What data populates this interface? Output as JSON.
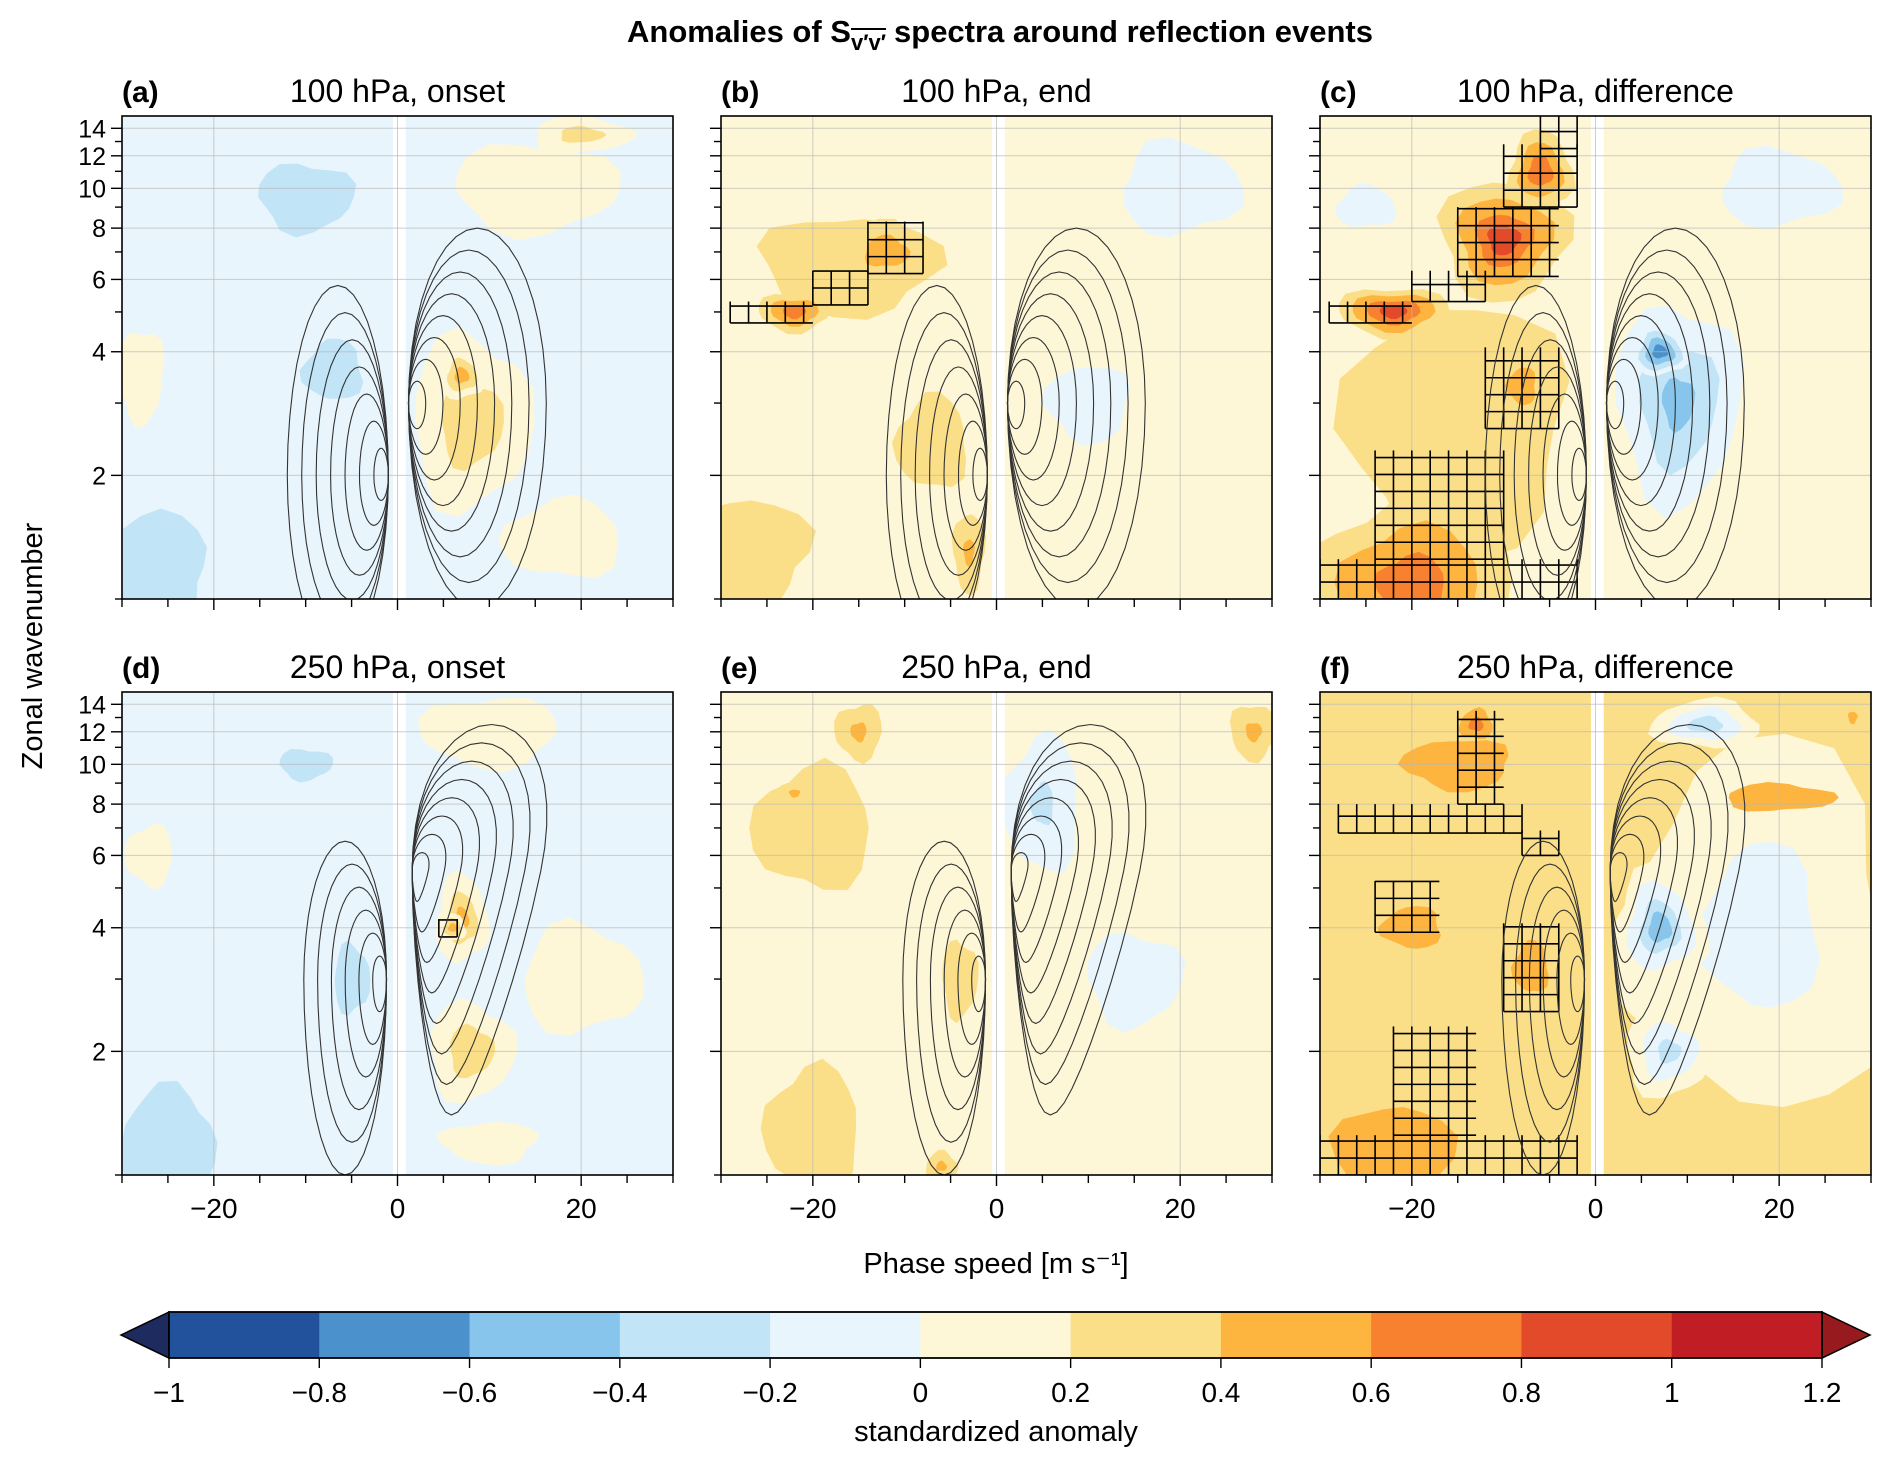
{
  "figure": {
    "title_prefix": "Anomalies of S",
    "title_subscript": "v′v′",
    "title_suffix": "spectra around reflection events",
    "xlabel": "Phase speed [m s⁻¹]",
    "ylabel": "Zonal wavenumber"
  },
  "colorbar": {
    "label": "standardized anomaly",
    "ticks": [
      "−1",
      "−0.8",
      "−0.6",
      "−0.4",
      "−0.2",
      "0",
      "0.2",
      "0.4",
      "0.6",
      "0.8",
      "1",
      "1.2"
    ],
    "bounds": [
      -1,
      -0.8,
      -0.6,
      -0.4,
      -0.2,
      0,
      0.2,
      0.4,
      0.6,
      0.8,
      1,
      1.2
    ],
    "colors": [
      "#23529c",
      "#4b91cb",
      "#87c5ec",
      "#c1e4f7",
      "#e9f5fc",
      "#fef7d7",
      "#fbdf88",
      "#fdb53f",
      "#f7812e",
      "#e34a2a",
      "#c01e24"
    ],
    "under_color": "#1d2b5e",
    "over_color": "#961a1e",
    "extend": "both"
  },
  "chart_data": {
    "type": "contourf",
    "xlim": [
      -30,
      30
    ],
    "ylim": [
      1,
      15
    ],
    "yscale": "log",
    "x_ticks": [
      -20,
      0,
      20
    ],
    "x_tick_labels": [
      "−20",
      "0",
      "20"
    ],
    "y_ticks": [
      2,
      4,
      6,
      8,
      10,
      12,
      14
    ],
    "y_tick_labels": [
      "2",
      "4",
      "6",
      "8",
      "10",
      "12",
      "14"
    ],
    "grid": true,
    "hatching": "significant anomalies",
    "line_contours": "climatological spectrum (unlabelled black contours)",
    "panels": [
      {
        "label": "(a)",
        "title": "100 hPa, onset",
        "background": -0.1,
        "anomalies": [
          {
            "c": -10,
            "k": 9.5,
            "sc": 8,
            "sk": 1.35,
            "v": -0.3
          },
          {
            "c": -27,
            "k": 1.2,
            "sc": 10,
            "sk": 1.6,
            "v": -0.3
          },
          {
            "c": -7,
            "k": 3.6,
            "sc": 5,
            "sk": 1.3,
            "v": -0.3
          },
          {
            "c": 15,
            "k": 10,
            "sc": 12,
            "sk": 1.4,
            "v": 0.15
          },
          {
            "c": -28,
            "k": 3.5,
            "sc": 4,
            "sk": 1.5,
            "v": 0.1
          },
          {
            "c": 18,
            "k": 1.4,
            "sc": 10,
            "sk": 1.4,
            "v": 0.1
          },
          {
            "c": 8,
            "k": 2.7,
            "sc": 7,
            "sk": 1.7,
            "v": 0.35
          },
          {
            "c": 7,
            "k": 3.5,
            "sc": 2.5,
            "sk": 1.15,
            "v": 0.5
          },
          {
            "c": 20,
            "k": 13.5,
            "sc": 6,
            "sk": 1.12,
            "v": 0.3
          }
        ],
        "hatch": [],
        "lobes": "upper"
      },
      {
        "label": "(b)",
        "title": "100 hPa, end",
        "background": 0.1,
        "anomalies": [
          {
            "c": -16,
            "k": 6.5,
            "sc": 13,
            "sk": 1.45,
            "v": 0.35
          },
          {
            "c": -28,
            "k": 1.3,
            "sc": 12,
            "sk": 1.6,
            "v": 0.3
          },
          {
            "c": -7,
            "k": 2.4,
            "sc": 6,
            "sk": 1.5,
            "v": 0.3
          },
          {
            "c": 10,
            "k": 3,
            "sc": 7,
            "sk": 1.4,
            "v": -0.1
          },
          {
            "c": 20,
            "k": 10,
            "sc": 10,
            "sk": 1.5,
            "v": -0.1
          },
          {
            "c": -22,
            "k": 5,
            "sc": 4,
            "sk": 1.12,
            "v": 0.7
          },
          {
            "c": -12,
            "k": 7,
            "sc": 5,
            "sk": 1.2,
            "v": 0.55
          },
          {
            "c": -3,
            "k": 1.3,
            "sc": 2,
            "sk": 1.3,
            "v": 0.45
          }
        ],
        "hatch": [
          [
            -29,
            -20,
            4.7,
            5.3
          ],
          [
            -20,
            -14,
            5.2,
            6.3
          ],
          [
            -14,
            -8,
            6.2,
            8.3
          ]
        ],
        "lobes": "upper"
      },
      {
        "label": "(c)",
        "title": "100 hPa, difference",
        "background": 0.1,
        "anomalies": [
          {
            "c": -15,
            "k": 2.6,
            "sc": 16,
            "sk": 2.6,
            "v": 0.35
          },
          {
            "c": -20,
            "k": 1.1,
            "sc": 12,
            "sk": 1.6,
            "v": 0.7
          },
          {
            "c": -22,
            "k": 5,
            "sc": 6,
            "sk": 1.15,
            "v": 0.85
          },
          {
            "c": -10,
            "k": 7.5,
            "sc": 7,
            "sk": 1.4,
            "v": 0.8
          },
          {
            "c": -6,
            "k": 11,
            "sc": 3.5,
            "sk": 1.25,
            "v": 0.75
          },
          {
            "c": -8,
            "k": 3.3,
            "sc": 4,
            "sk": 1.3,
            "v": 0.5
          },
          {
            "c": 9,
            "k": 3,
            "sc": 7,
            "sk": 1.8,
            "v": -0.45
          },
          {
            "c": 7,
            "k": 4,
            "sc": 3,
            "sk": 1.15,
            "v": -0.7
          },
          {
            "c": 20,
            "k": 10,
            "sc": 10,
            "sk": 1.4,
            "v": -0.1
          },
          {
            "c": -25,
            "k": 9,
            "sc": 5,
            "sk": 1.2,
            "v": -0.1
          }
        ],
        "hatch": [
          [
            -30,
            -2,
            1,
            1.25
          ],
          [
            -24,
            -10,
            1.25,
            2.3
          ],
          [
            -12,
            -4,
            2.6,
            4.1
          ],
          [
            -29,
            -20,
            4.7,
            5.3
          ],
          [
            -20,
            -12,
            5.3,
            6.3
          ],
          [
            -15,
            -4,
            6.1,
            9
          ],
          [
            -10,
            -2,
            9,
            12.8
          ],
          [
            -6,
            -2,
            12.5,
            15
          ]
        ],
        "lobes": "upper"
      },
      {
        "label": "(d)",
        "title": "250 hPa, onset",
        "background": -0.1,
        "anomalies": [
          {
            "c": -25,
            "k": 1.2,
            "sc": 8,
            "sk": 1.6,
            "v": -0.3
          },
          {
            "c": -5,
            "k": 3,
            "sc": 3,
            "sk": 1.35,
            "v": -0.3
          },
          {
            "c": -10,
            "k": 10,
            "sc": 6,
            "sk": 1.2,
            "v": -0.25
          },
          {
            "c": 20,
            "k": 3,
            "sc": 10,
            "sk": 1.6,
            "v": 0.1
          },
          {
            "c": 10,
            "k": 12,
            "sc": 10,
            "sk": 1.3,
            "v": 0.15
          },
          {
            "c": -27,
            "k": 6,
            "sc": 4,
            "sk": 1.3,
            "v": 0.1
          },
          {
            "c": 10,
            "k": 1.2,
            "sc": 8,
            "sk": 1.2,
            "v": 0.1
          },
          {
            "c": 8,
            "k": 2,
            "sc": 5,
            "sk": 1.35,
            "v": 0.35
          },
          {
            "c": 7,
            "k": 4.2,
            "sc": 3,
            "sk": 1.3,
            "v": 0.4
          },
          {
            "c": 6,
            "k": 4,
            "sc": 1.5,
            "sk": 1.08,
            "v": 0.5
          }
        ],
        "hatch": [
          [
            4.5,
            6.5,
            3.8,
            4.2
          ]
        ],
        "lobes": "lower"
      },
      {
        "label": "(e)",
        "title": "250 hPa, end",
        "background": 0.1,
        "anomalies": [
          {
            "c": -20,
            "k": 7,
            "sc": 10,
            "sk": 1.7,
            "v": 0.3
          },
          {
            "c": -20,
            "k": 1.3,
            "sc": 8,
            "sk": 1.7,
            "v": 0.3
          },
          {
            "c": -4,
            "k": 3,
            "sc": 3,
            "sk": 1.4,
            "v": 0.3
          },
          {
            "c": 5,
            "k": 8,
            "sc": 5,
            "sk": 1.6,
            "v": -0.2
          },
          {
            "c": 15,
            "k": 3,
            "sc": 8,
            "sk": 1.5,
            "v": -0.1
          },
          {
            "c": -15,
            "k": 12,
            "sc": 3,
            "sk": 1.2,
            "v": 0.45
          },
          {
            "c": -22,
            "k": 8.5,
            "sc": 2,
            "sk": 1.08,
            "v": 0.45
          },
          {
            "c": 28,
            "k": 12,
            "sc": 3,
            "sk": 1.2,
            "v": 0.45
          },
          {
            "c": -6,
            "k": 1.05,
            "sc": 2,
            "sk": 1.1,
            "v": 0.45
          }
        ],
        "hatch": [],
        "lobes": "lower"
      },
      {
        "label": "(f)",
        "title": "250 hPa, difference",
        "background": 0.3,
        "anomalies": [
          {
            "c": 18,
            "k": 4,
            "sc": 16,
            "sk": 3.2,
            "v": -0.1
          },
          {
            "c": -22,
            "k": 1.1,
            "sc": 10,
            "sk": 1.6,
            "v": 0.5
          },
          {
            "c": -20,
            "k": 4,
            "sc": 5,
            "sk": 1.2,
            "v": 0.5
          },
          {
            "c": -7,
            "k": 3.2,
            "sc": 3,
            "sk": 1.25,
            "v": 0.5
          },
          {
            "c": -15,
            "k": 10,
            "sc": 12,
            "sk": 1.35,
            "v": 0.45
          },
          {
            "c": -13,
            "k": 12.5,
            "sc": 2,
            "sk": 1.1,
            "v": 0.7
          },
          {
            "c": 7,
            "k": 4,
            "sc": 5,
            "sk": 1.4,
            "v": -0.4
          },
          {
            "c": 8,
            "k": 2,
            "sc": 5,
            "sk": 1.3,
            "v": -0.25
          },
          {
            "c": 12,
            "k": 12.5,
            "sc": 6,
            "sk": 1.15,
            "v": -0.3
          },
          {
            "c": 20,
            "k": 8.3,
            "sc": 6,
            "sk": 1.08,
            "v": 0.35
          },
          {
            "c": 28,
            "k": 13,
            "sc": 2,
            "sk": 1.15,
            "v": 0.4
          }
        ],
        "hatch": [
          [
            -30,
            -2,
            1,
            1.25
          ],
          [
            -22,
            -13,
            1.25,
            2.3
          ],
          [
            -10,
            -4,
            2.5,
            4.1
          ],
          [
            -24,
            -17,
            3.9,
            5.2
          ],
          [
            -28,
            -8,
            6.8,
            8
          ],
          [
            -15,
            -10,
            8,
            13.5
          ],
          [
            -8,
            -4,
            6,
            6.9
          ]
        ],
        "lobes": "lower"
      }
    ],
    "climatology_lobes": {
      "upper": [
        {
          "side": -1,
          "c_edge": -0.6,
          "width": 11,
          "k_peak": 2,
          "k_max": 5.8,
          "k_min": 0.75,
          "tilt": 0,
          "n": 7
        },
        {
          "side": 1,
          "c_edge": 0.8,
          "width": 15,
          "k_peak": 3,
          "k_max": 8,
          "k_min": 0.95,
          "tilt": 0,
          "n": 8
        }
      ],
      "lower": [
        {
          "side": -1,
          "c_edge": -0.8,
          "width": 9,
          "k_peak": 3,
          "k_max": 6.5,
          "k_min": 1.0,
          "tilt": 0,
          "n": 6
        },
        {
          "side": 1,
          "c_edge": 1.2,
          "width": 14,
          "k_peak": 5.5,
          "k_max": 12.5,
          "k_min": 1.4,
          "tilt": 4,
          "n": 8
        }
      ]
    }
  }
}
